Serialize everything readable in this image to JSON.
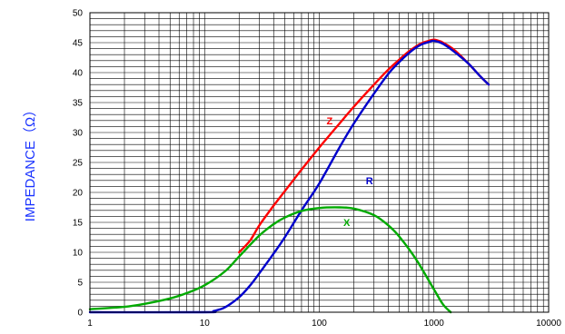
{
  "chart_data": {
    "type": "line",
    "title": "",
    "xlabel": "",
    "ylabel": "IMPEDANCE（Ω）",
    "x_scale": "log",
    "xlim": [
      1,
      10000
    ],
    "ylim": [
      0,
      50
    ],
    "x_ticks": [
      "1",
      "10",
      "100",
      "1000",
      "10000"
    ],
    "y_ticks": [
      "0",
      "5",
      "10",
      "15",
      "20",
      "25",
      "30",
      "35",
      "40",
      "45",
      "50"
    ],
    "grid": true,
    "series": [
      {
        "name": "Z",
        "color": "#ff0000",
        "x": [
          20,
          25,
          30,
          40,
          50,
          70,
          100,
          150,
          200,
          300,
          400,
          500,
          600,
          700,
          800,
          900,
          1000,
          1100,
          1200,
          1500,
          2000,
          2500,
          3000
        ],
        "y": [
          10,
          12,
          14.5,
          17.8,
          20.2,
          23.8,
          27.5,
          31.5,
          34.3,
          38,
          40.5,
          42.2,
          43.5,
          44.4,
          45,
          45.3,
          45.5,
          45.3,
          45,
          43.8,
          41.5,
          39.5,
          38
        ]
      },
      {
        "name": "R",
        "color": "#0000cc",
        "x": [
          1,
          10,
          12,
          15,
          20,
          25,
          30,
          40,
          50,
          70,
          100,
          150,
          200,
          300,
          400,
          500,
          600,
          700,
          800,
          900,
          1000,
          1200,
          1500,
          2000,
          2500,
          3000
        ],
        "y": [
          0,
          0,
          0.2,
          0.8,
          2.5,
          4.5,
          6.5,
          9.8,
          12.5,
          17,
          21.5,
          27.5,
          31.5,
          36.5,
          39.8,
          41.8,
          43.2,
          44.2,
          44.8,
          45.1,
          45.3,
          44.8,
          43.5,
          41.5,
          39.5,
          38
        ]
      },
      {
        "name": "X",
        "color": "#00aa00",
        "x": [
          1,
          2,
          3,
          5,
          7,
          10,
          15,
          20,
          30,
          40,
          50,
          70,
          100,
          150,
          200,
          300,
          400,
          500,
          700,
          1000,
          1200,
          1400
        ],
        "y": [
          0.5,
          0.9,
          1.4,
          2.3,
          3.2,
          4.5,
          6.8,
          9.3,
          12.8,
          14.7,
          15.8,
          16.9,
          17.4,
          17.5,
          17.3,
          16.2,
          14.5,
          12.6,
          8.8,
          3.8,
          1.3,
          0
        ]
      }
    ],
    "annotations": [
      {
        "text": "Z",
        "x": 100,
        "y": 32,
        "color": "#ff0000"
      },
      {
        "text": "R",
        "x": 220,
        "y": 22,
        "color": "#0000cc"
      },
      {
        "text": "X",
        "x": 140,
        "y": 15,
        "color": "#00aa00"
      }
    ]
  }
}
